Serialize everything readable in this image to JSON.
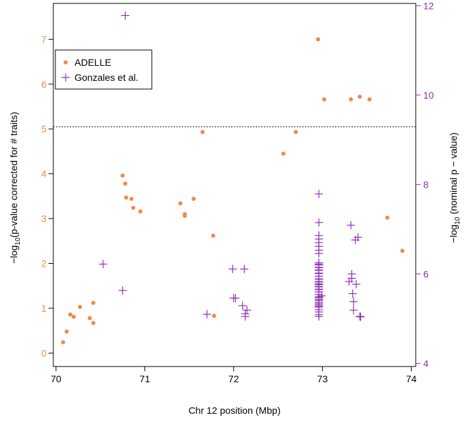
{
  "chart_data": {
    "type": "scatter",
    "title": "",
    "xlabel": "Chr 12 position (Mbp)",
    "ylabel_left_prefix": "−log",
    "ylabel_left_sub": "10",
    "ylabel_left_suffix": "(p-value corrected for # traits)",
    "ylabel_right_prefix": "−log",
    "ylabel_right_sub": "10",
    "ylabel_right_suffix": " (nominal p − value)",
    "xlim": [
      69.97,
      74.05
    ],
    "ylim_left": [
      -0.3,
      7.8
    ],
    "ylim_right": [
      3.93,
      12.05
    ],
    "x_ticks": [
      70,
      71,
      72,
      73,
      74
    ],
    "x_tick_labels": [
      "70",
      "71",
      "72",
      "73",
      "74"
    ],
    "y_left_ticks": [
      0,
      1,
      2,
      3,
      4,
      5,
      6,
      7
    ],
    "y_left_tick_labels": [
      "0",
      "1",
      "2",
      "3",
      "4",
      "5",
      "6",
      "7"
    ],
    "y_right_ticks": [
      4,
      6,
      8,
      10,
      12
    ],
    "y_right_tick_labels": [
      "4",
      "6",
      "8",
      "10",
      "12"
    ],
    "threshold_line": 5.05,
    "legend_position": "top-left",
    "colors": {
      "adelle": "#ef8a4a",
      "gonzales": "#8e2fb5",
      "axis": "#000000",
      "left_axis_text": "#ef8a4a",
      "right_axis_text": "#8e2fb5"
    },
    "series": [
      {
        "name": "ADELLE",
        "marker": "dot",
        "axis": "left",
        "x": [
          70.08,
          70.12,
          70.16,
          70.2,
          70.27,
          70.38,
          70.42,
          70.42,
          70.75,
          70.78,
          70.79,
          70.85,
          70.87,
          70.95,
          71.4,
          71.45,
          71.45,
          71.55,
          71.65,
          71.77,
          71.78,
          72.56,
          72.7,
          72.95,
          73.02,
          73.32,
          73.42,
          73.53,
          73.73,
          73.9
        ],
        "y": [
          0.24,
          0.48,
          0.86,
          0.81,
          1.03,
          0.78,
          1.12,
          0.67,
          3.96,
          3.78,
          3.47,
          3.44,
          3.24,
          3.16,
          3.34,
          3.1,
          3.06,
          3.44,
          4.93,
          2.62,
          0.83,
          4.45,
          4.93,
          7.0,
          5.66,
          5.66,
          5.72,
          5.66,
          3.02,
          2.28
        ]
      },
      {
        "name": "Gonzales et al.",
        "marker": "plus",
        "axis": "right",
        "x": [
          70.53,
          70.75,
          70.78,
          71.7,
          71.99,
          72.0,
          72.02,
          72.1,
          72.12,
          72.13,
          72.13,
          72.15,
          72.96,
          72.96,
          72.96,
          72.96,
          72.96,
          72.96,
          72.96,
          72.96,
          72.96,
          72.96,
          72.96,
          72.96,
          72.96,
          72.96,
          72.96,
          72.96,
          72.96,
          72.96,
          72.96,
          72.96,
          72.96,
          72.96,
          72.96,
          72.96,
          72.96,
          72.96,
          72.96,
          72.96,
          72.96,
          72.96,
          72.96,
          72.96,
          72.96,
          72.96,
          72.96,
          72.96,
          72.96,
          72.96,
          72.96,
          72.96,
          72.96,
          72.96,
          72.96,
          72.96,
          72.96,
          72.96,
          72.99,
          73.3,
          73.32,
          73.33,
          73.33,
          73.34,
          73.35,
          73.35,
          73.37,
          73.38,
          73.4,
          73.42,
          73.43
        ],
        "y": [
          6.22,
          5.63,
          11.78,
          5.1,
          6.11,
          5.46,
          5.46,
          5.29,
          6.11,
          5.11,
          5.05,
          5.19,
          7.79,
          7.15,
          6.86,
          6.78,
          6.7,
          6.62,
          6.53,
          6.46,
          6.25,
          6.2,
          6.14,
          6.08,
          6.02,
          5.95,
          5.88,
          5.82,
          5.76,
          5.71,
          5.65,
          5.6,
          5.54,
          5.49,
          5.43,
          5.37,
          5.31,
          5.26,
          5.2,
          5.15,
          5.09,
          5.05,
          6.22,
          6.15,
          6.09,
          6.01,
          5.95,
          5.89,
          5.83,
          5.78,
          5.72,
          5.66,
          5.6,
          5.54,
          5.47,
          5.41,
          5.34,
          5.28,
          5.51,
          5.83,
          7.09,
          6.0,
          5.9,
          5.56,
          5.38,
          5.19,
          6.76,
          5.77,
          6.82,
          5.05,
          5.04
        ]
      }
    ]
  }
}
